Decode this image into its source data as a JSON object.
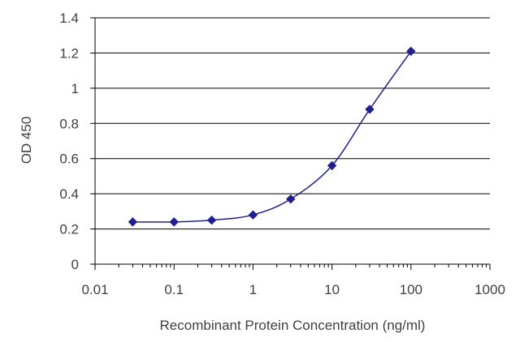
{
  "chart_data": {
    "type": "scatter",
    "title": "",
    "xlabel": "Recombinant Protein Concentration (ng/ml)",
    "ylabel": "OD 450",
    "xscale": "log",
    "xlim": [
      0.01,
      1000
    ],
    "ylim": [
      0,
      1.4
    ],
    "xticks": [
      "0.01",
      "0.1",
      "1",
      "10",
      "100",
      "1000"
    ],
    "yticks": [
      "0",
      "0.2",
      "0.4",
      "0.6",
      "0.8",
      "1",
      "1.2",
      "1.4"
    ],
    "grid": "horizontal",
    "legend": "none",
    "colors": {
      "series": "#1f1f8f",
      "grid": "#000000",
      "text": "#404040"
    },
    "series": [
      {
        "x": [
          0.03,
          0.1,
          0.3,
          1,
          3,
          10,
          30,
          100
        ],
        "y": [
          0.24,
          0.24,
          0.25,
          0.28,
          0.37,
          0.56,
          0.88,
          1.21
        ]
      }
    ]
  }
}
